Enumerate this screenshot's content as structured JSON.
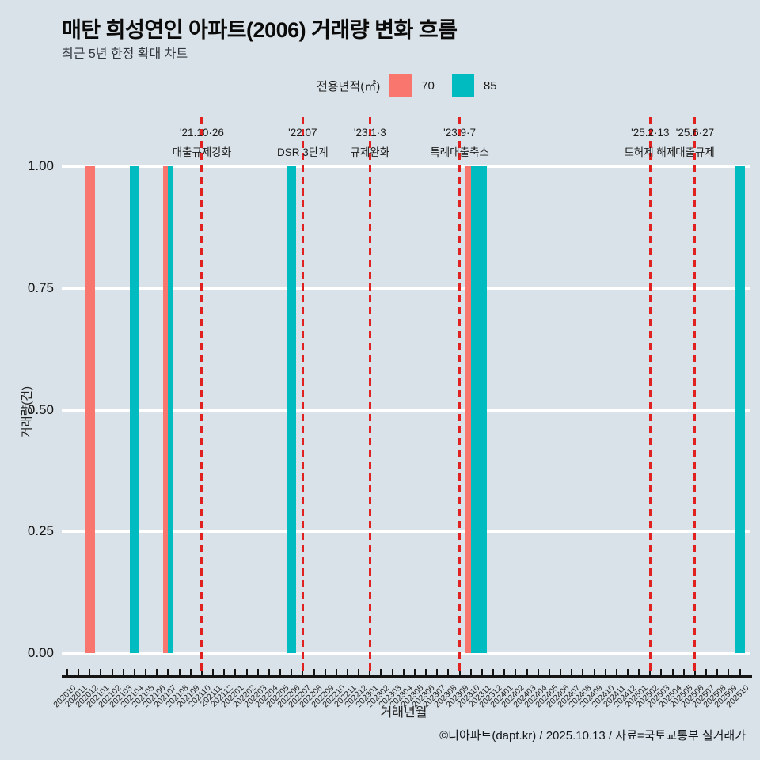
{
  "title": "매탄 희성연인 아파트(2006) 거래량 변화 흐름",
  "subtitle": "최근 5년 한정 확대 차트",
  "legend": {
    "title": "전용면적(㎡)",
    "items": [
      {
        "label": "70",
        "color": "#F8766D"
      },
      {
        "label": "85",
        "color": "#00BCC0"
      }
    ]
  },
  "footer": "©디아파트(dapt.kr) / 2025.10.13 / 자료=국토교통부 실거래가",
  "colors": {
    "background": "#d9e2e8",
    "gridline": "#ffffff",
    "axis": "#141414",
    "event_line": "#e12120",
    "series_70": "#F8766D",
    "series_85": "#00BCC0"
  },
  "chart_data": {
    "type": "bar",
    "title": "매탄 희성연인 아파트(2006) 거래량 변화 흐름",
    "xlabel": "거래년월",
    "ylabel": "거래량(건)",
    "ylim": [
      0,
      1
    ],
    "yticks": [
      {
        "value": 1.0,
        "label": "1.00"
      },
      {
        "value": 0.75,
        "label": "0.75"
      },
      {
        "value": 0.5,
        "label": "0.50"
      },
      {
        "value": 0.25,
        "label": "0.25"
      },
      {
        "value": 0.0,
        "label": "0.00"
      }
    ],
    "grid": "horizontal-white",
    "legend_position": "top",
    "bar_mode": "dodge-single-expands",
    "categories": [
      "202010",
      "202011",
      "202012",
      "202101",
      "202102",
      "202103",
      "202104",
      "202105",
      "202106",
      "202107",
      "202108",
      "202109",
      "202110",
      "202111",
      "202112",
      "202201",
      "202202",
      "202203",
      "202204",
      "202205",
      "202206",
      "202207",
      "202208",
      "202209",
      "202210",
      "202211",
      "202212",
      "202301",
      "202302",
      "202303",
      "202304",
      "202305",
      "202306",
      "202307",
      "202308",
      "202309",
      "202310",
      "202311",
      "202312",
      "202401",
      "202402",
      "202403",
      "202404",
      "202405",
      "202406",
      "202407",
      "202408",
      "202409",
      "202410",
      "202411",
      "202412",
      "202501",
      "202502",
      "202503",
      "202504",
      "202505",
      "202506",
      "202507",
      "202508",
      "202509",
      "202510"
    ],
    "series": [
      {
        "name": "70",
        "color": "#F8766D",
        "points": {
          "202012": 1,
          "202107": 1,
          "202310": 1
        }
      },
      {
        "name": "85",
        "color": "#00BCC0",
        "points": {
          "202104": 1,
          "202107": 1,
          "202206": 1,
          "202310": 1,
          "202311": 1,
          "202510": 1
        }
      }
    ],
    "annotations": [
      {
        "month": "202110",
        "date": "'21.10·26",
        "label": "대출규제강화"
      },
      {
        "month": "202207",
        "date": "'22.07",
        "label": "DSR 3단계"
      },
      {
        "month": "202301",
        "date": "'23.1·3",
        "label": "규제완화"
      },
      {
        "month": "202309",
        "date": "'23.9·7",
        "label": "특례대출축소"
      },
      {
        "month": "202502",
        "date": "'25.2·13",
        "label": "토허제 해제"
      },
      {
        "month": "202506",
        "date": "'25.6·27",
        "label": "대출규제"
      }
    ]
  }
}
